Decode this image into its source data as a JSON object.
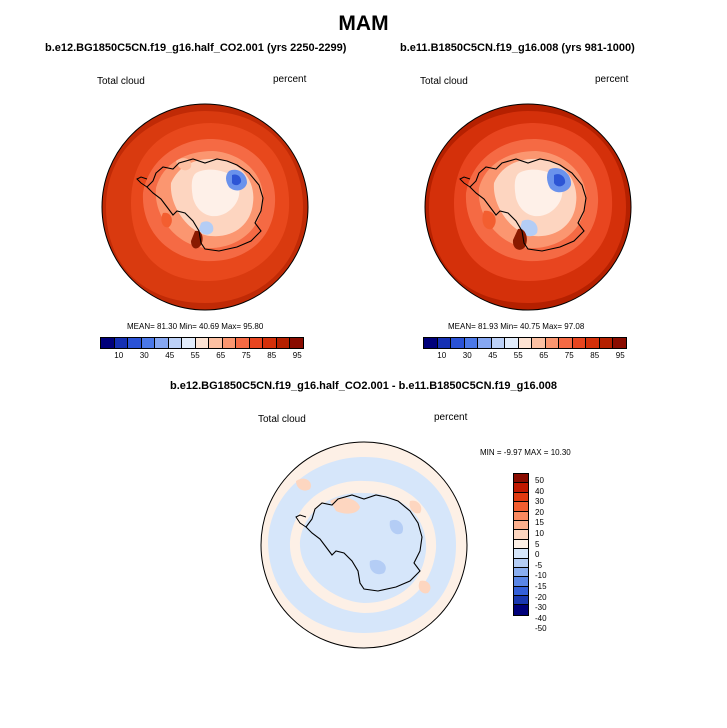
{
  "figure": {
    "title": "MAM"
  },
  "panels": [
    {
      "case": "b.e12.BG1850C5CN.f19_g16.half_CO2.001 (yrs 2250-2299)",
      "field": "Total cloud",
      "units": "percent",
      "stats": "MEAN= 81.30  Min= 40.69  Max= 95.80",
      "colorbar_ticks": [
        "10",
        "30",
        "45",
        "55",
        "65",
        "75",
        "85",
        "95"
      ]
    },
    {
      "case": "b.e11.B1850C5CN.f19_g16.008 (yrs 981-1000)",
      "field": "Total cloud",
      "units": "percent",
      "stats": "MEAN= 81.93  Min= 40.75  Max= 97.08",
      "colorbar_ticks": [
        "10",
        "30",
        "45",
        "55",
        "65",
        "75",
        "85",
        "95"
      ]
    }
  ],
  "diff": {
    "case": "b.e12.BG1850C5CN.f19_g16.half_CO2.001 - b.e11.B1850C5CN.f19_g16.008",
    "field": "Total cloud",
    "units": "percent",
    "stats": "MIN =  -9.97 MAX =  10.30",
    "colorbar_ticks": [
      "50",
      "40",
      "30",
      "20",
      "15",
      "10",
      "5",
      "0",
      "-5",
      "-10",
      "-15",
      "-20",
      "-30",
      "-40",
      "-50"
    ]
  },
  "colors": {
    "abs_scale": [
      "#00007a",
      "#1530b3",
      "#2a52d6",
      "#4b78e8",
      "#86a7f2",
      "#bdd1f7",
      "#e2ecfb",
      "#fde3d3",
      "#fcc0a2",
      "#fb9670",
      "#f56a44",
      "#e8451f",
      "#d4300a",
      "#b52000",
      "#8a0c00"
    ],
    "diff_scale": [
      "#8a0c00",
      "#c01800",
      "#e03a10",
      "#f35e30",
      "#fa8a60",
      "#fcb08e",
      "#fdd6c0",
      "#fdf0e6",
      "#d6e6fa",
      "#b4cdf5",
      "#8aaef0",
      "#5a86e6",
      "#3460d8",
      "#1a38b0",
      "#00007a"
    ]
  }
}
